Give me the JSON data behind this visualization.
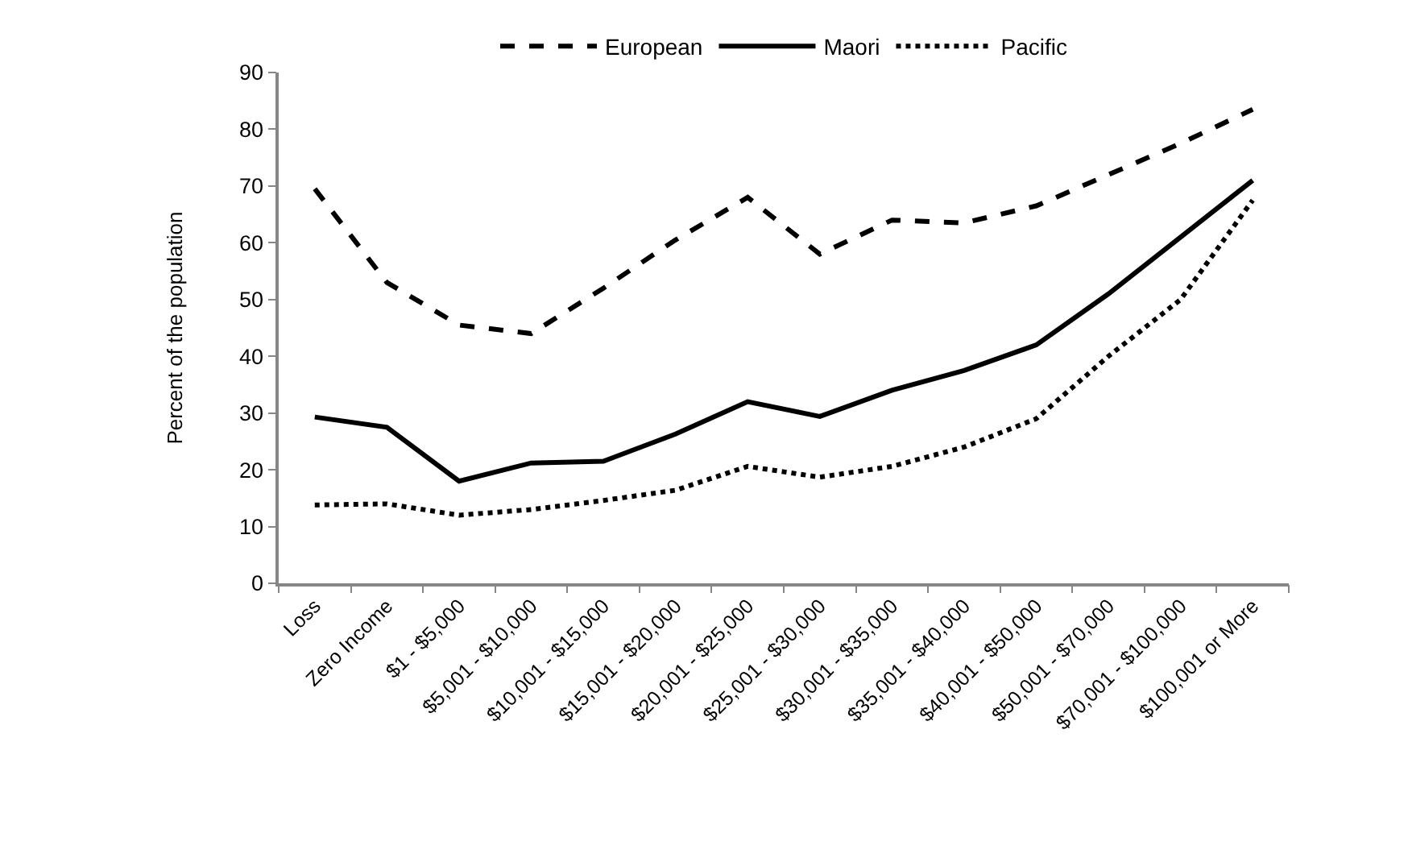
{
  "chart_data": {
    "type": "line",
    "categories": [
      "Loss",
      "Zero Income",
      "$1 - $5,000",
      "$5,001 - $10,000",
      "$10,001 - $15,000",
      "$15,001 - $20,000",
      "$20,001 - $25,000",
      "$25,001 - $30,000",
      "$30,001 - $35,000",
      "$35,001 - $40,000",
      "$40,001 - $50,000",
      "$50,001 - $70,000",
      "$70,001 - $100,000",
      "$100,001 or More"
    ],
    "ylabel": "Percent of the population",
    "ylim": [
      0,
      90
    ],
    "yticks": [
      0,
      10,
      20,
      30,
      40,
      50,
      60,
      70,
      80,
      90
    ],
    "legend": "top",
    "marker": "none",
    "series": [
      {
        "name": "European",
        "color": "#000000",
        "line_style": "dashed",
        "values": [
          69.5,
          53,
          45.5,
          44,
          52,
          60.5,
          68,
          58,
          64,
          63.5,
          66.5,
          72,
          77.5,
          83.5
        ]
      },
      {
        "name": "Maori",
        "color": "#000000",
        "line_style": "solid",
        "values": [
          29.3,
          27.5,
          18,
          21.2,
          21.5,
          26.3,
          32,
          29.4,
          34,
          37.5,
          42,
          51,
          61,
          71
        ]
      },
      {
        "name": "Pacific",
        "color": "#000000",
        "line_style": "dotted",
        "values": [
          13.8,
          14,
          12,
          13,
          14.6,
          16.4,
          20.6,
          18.7,
          20.6,
          24,
          29,
          40,
          50,
          67.5
        ]
      }
    ]
  }
}
